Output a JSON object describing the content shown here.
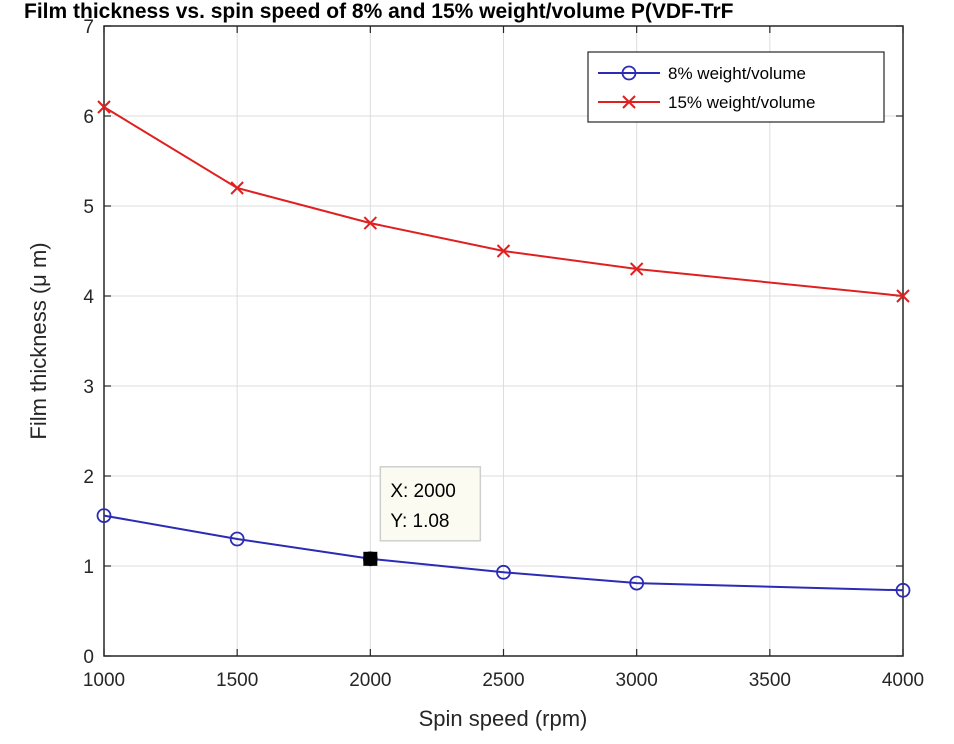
{
  "chart_data": {
    "type": "line",
    "title": "Film thickness vs. spin speed of 8% and 15% weight/volume P(VDF-TrF",
    "xlabel": "Spin speed (rpm)",
    "ylabel": "Film thickness (μ m)",
    "xlim": [
      1000,
      4000
    ],
    "ylim": [
      0,
      7
    ],
    "xticks": [
      1000,
      1500,
      2000,
      2500,
      3000,
      3500,
      4000
    ],
    "yticks": [
      0,
      1,
      2,
      3,
      4,
      5,
      6,
      7
    ],
    "grid": true,
    "legend_position": "top-right",
    "series": [
      {
        "name": "8% weight/volume",
        "color": "#2b2bb5",
        "marker": "circle",
        "x": [
          1000,
          1500,
          2000,
          2500,
          3000,
          4000
        ],
        "y": [
          1.56,
          1.3,
          1.08,
          0.93,
          0.81,
          0.73
        ]
      },
      {
        "name": "15% weight/volume",
        "color": "#e02020",
        "marker": "x",
        "x": [
          1000,
          1500,
          2000,
          2500,
          3000,
          4000
        ],
        "y": [
          6.1,
          5.2,
          4.81,
          4.5,
          4.3,
          4.0
        ]
      }
    ],
    "datatip": {
      "x": 2000,
      "y": 1.08,
      "x_text": "X: 2000",
      "y_text": "Y: 1.08"
    }
  }
}
